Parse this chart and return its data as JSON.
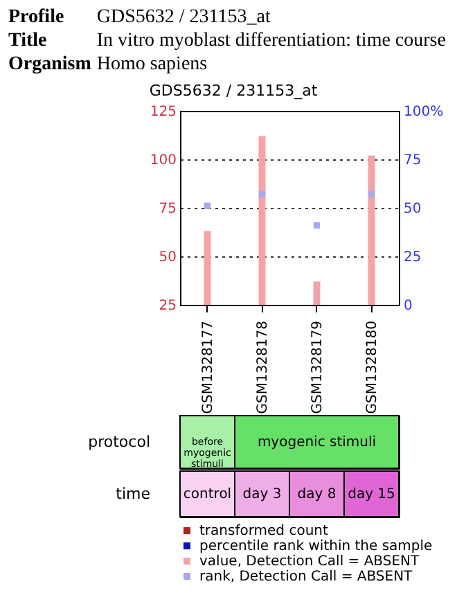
{
  "chart_data": {
    "type": "bar",
    "title": "GDS5632 / 231153_at",
    "categories": [
      "GSM1328177",
      "GSM1328178",
      "GSM1328179",
      "GSM1328180"
    ],
    "series": [
      {
        "name": "transformed count",
        "color": "#b22222",
        "values": [
          null,
          null,
          null,
          null
        ]
      },
      {
        "name": "percentile rank within the sample",
        "type": "scatter",
        "axis": "y2",
        "color": "#1010c0",
        "values": [
          null,
          null,
          null,
          null
        ]
      },
      {
        "name": "value, Detection Call = ABSENT",
        "color": "#f4a4a4",
        "values": [
          63,
          112,
          37,
          102
        ]
      },
      {
        "name": "rank, Detection Call = ABSENT",
        "type": "scatter",
        "axis": "y2",
        "color": "#a8a8ee",
        "values": [
          51,
          57,
          41,
          57
        ]
      }
    ],
    "ylim": [
      25,
      125
    ],
    "yticks": [
      25,
      50,
      75,
      100,
      125
    ],
    "y2lim": [
      0,
      100
    ],
    "y2ticks": [
      0,
      25,
      50,
      75,
      {
        "value": 100,
        "label": "100%"
      }
    ],
    "grid": "y",
    "legend": "bottom",
    "marker": "square",
    "annotations": [
      "Profile",
      "GDS5632 / 231153_at",
      "Title",
      "In vitro myoblast differentiation: time course",
      "Organism",
      "Homo sapiens",
      "protocol",
      "before myogenic stimuli",
      "myogenic stimuli",
      "time",
      "control",
      "day 3",
      "day 8",
      "day 15"
    ]
  }
}
